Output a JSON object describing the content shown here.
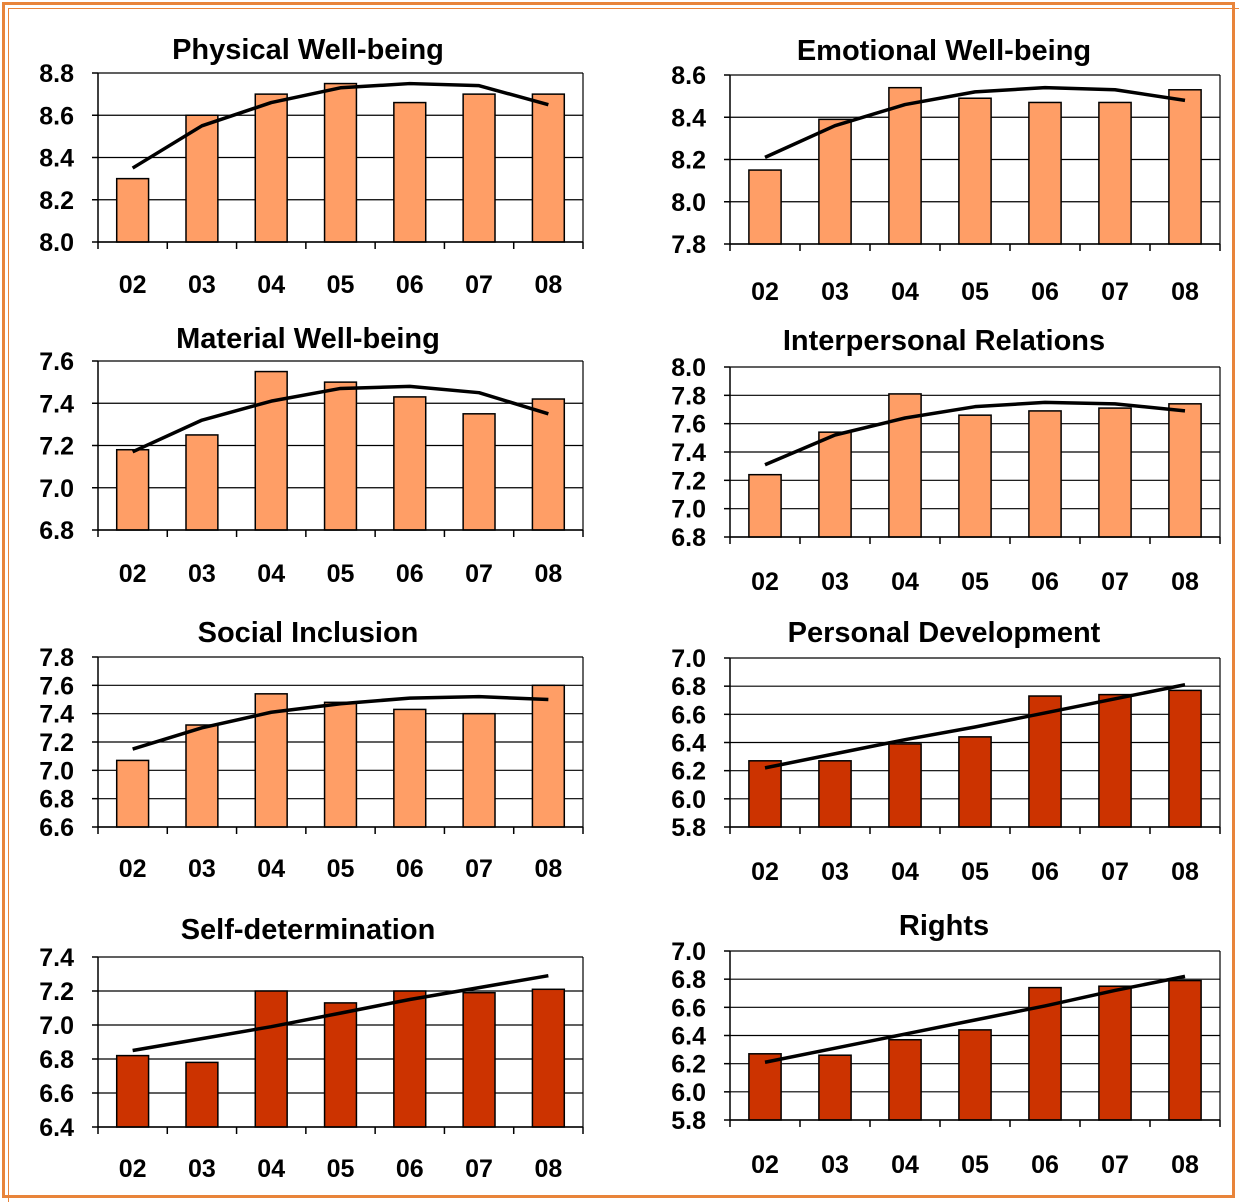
{
  "chart_data": [
    {
      "type": "bar",
      "title": "Physical Well-being",
      "categories": [
        "02",
        "03",
        "04",
        "05",
        "06",
        "07",
        "08"
      ],
      "values": [
        8.3,
        8.6,
        8.7,
        8.75,
        8.66,
        8.7,
        8.7
      ],
      "trend": [
        8.35,
        8.55,
        8.66,
        8.73,
        8.75,
        8.74,
        8.65
      ],
      "ylim": [
        8.0,
        8.8
      ],
      "yticks": [
        "8.0",
        "8.2",
        "8.4",
        "8.6",
        "8.8"
      ],
      "bar_color": "#FF9E66",
      "grid": true
    },
    {
      "type": "bar",
      "title": "Emotional Well-being",
      "categories": [
        "02",
        "03",
        "04",
        "05",
        "06",
        "07",
        "08"
      ],
      "values": [
        8.15,
        8.39,
        8.54,
        8.49,
        8.47,
        8.47,
        8.53
      ],
      "trend": [
        8.21,
        8.36,
        8.46,
        8.52,
        8.54,
        8.53,
        8.48
      ],
      "ylim": [
        7.8,
        8.6
      ],
      "yticks": [
        "7.8",
        "8.0",
        "8.2",
        "8.4",
        "8.6"
      ],
      "bar_color": "#FF9E66",
      "grid": true
    },
    {
      "type": "bar",
      "title": "Material Well-being",
      "categories": [
        "02",
        "03",
        "04",
        "05",
        "06",
        "07",
        "08"
      ],
      "values": [
        7.18,
        7.25,
        7.55,
        7.5,
        7.43,
        7.35,
        7.42
      ],
      "trend": [
        7.17,
        7.32,
        7.41,
        7.47,
        7.48,
        7.45,
        7.35
      ],
      "ylim": [
        6.8,
        7.6
      ],
      "yticks": [
        "6.8",
        "7.0",
        "7.2",
        "7.4",
        "7.6"
      ],
      "bar_color": "#FF9E66",
      "grid": true
    },
    {
      "type": "bar",
      "title": "Interpersonal Relations",
      "categories": [
        "02",
        "03",
        "04",
        "05",
        "06",
        "07",
        "08"
      ],
      "values": [
        7.24,
        7.54,
        7.81,
        7.66,
        7.69,
        7.71,
        7.74
      ],
      "trend": [
        7.31,
        7.52,
        7.64,
        7.72,
        7.75,
        7.74,
        7.69
      ],
      "ylim": [
        6.8,
        8.0
      ],
      "yticks": [
        "6.8",
        "7.0",
        "7.2",
        "7.4",
        "7.6",
        "7.8",
        "8.0"
      ],
      "bar_color": "#FF9E66",
      "grid": true
    },
    {
      "type": "bar",
      "title": "Social Inclusion",
      "categories": [
        "02",
        "03",
        "04",
        "05",
        "06",
        "07",
        "08"
      ],
      "values": [
        7.07,
        7.32,
        7.54,
        7.48,
        7.43,
        7.4,
        7.6
      ],
      "trend": [
        7.15,
        7.3,
        7.41,
        7.47,
        7.51,
        7.52,
        7.5
      ],
      "ylim": [
        6.6,
        7.8
      ],
      "yticks": [
        "6.6",
        "6.8",
        "7.0",
        "7.2",
        "7.4",
        "7.6",
        "7.8"
      ],
      "bar_color": "#FF9E66",
      "grid": true
    },
    {
      "type": "bar",
      "title": "Personal Development",
      "categories": [
        "02",
        "03",
        "04",
        "05",
        "06",
        "07",
        "08"
      ],
      "values": [
        6.27,
        6.27,
        6.39,
        6.44,
        6.73,
        6.74,
        6.77
      ],
      "trend": [
        6.22,
        6.32,
        6.42,
        6.51,
        6.61,
        6.71,
        6.81
      ],
      "ylim": [
        5.8,
        7.0
      ],
      "yticks": [
        "5.8",
        "6.0",
        "6.2",
        "6.4",
        "6.6",
        "6.8",
        "7.0"
      ],
      "bar_color": "#CC3300",
      "grid": true
    },
    {
      "type": "bar",
      "title": "Self-determination",
      "categories": [
        "02",
        "03",
        "04",
        "05",
        "06",
        "07",
        "08"
      ],
      "values": [
        6.82,
        6.78,
        7.2,
        7.13,
        7.2,
        7.19,
        7.21
      ],
      "trend": [
        6.85,
        6.92,
        6.99,
        7.07,
        7.15,
        7.22,
        7.29
      ],
      "ylim": [
        6.4,
        7.4
      ],
      "yticks": [
        "6.4",
        "6.6",
        "6.8",
        "7.0",
        "7.2",
        "7.4"
      ],
      "bar_color": "#CC3300",
      "grid": true
    },
    {
      "type": "bar",
      "title": "Rights",
      "categories": [
        "02",
        "03",
        "04",
        "05",
        "06",
        "07",
        "08"
      ],
      "values": [
        6.27,
        6.26,
        6.37,
        6.44,
        6.74,
        6.75,
        6.79
      ],
      "trend": [
        6.21,
        6.31,
        6.41,
        6.51,
        6.61,
        6.72,
        6.82
      ],
      "ylim": [
        5.8,
        7.0
      ],
      "yticks": [
        "5.8",
        "6.0",
        "6.2",
        "6.4",
        "6.6",
        "6.8",
        "7.0"
      ],
      "bar_color": "#CC3300",
      "grid": true
    }
  ]
}
